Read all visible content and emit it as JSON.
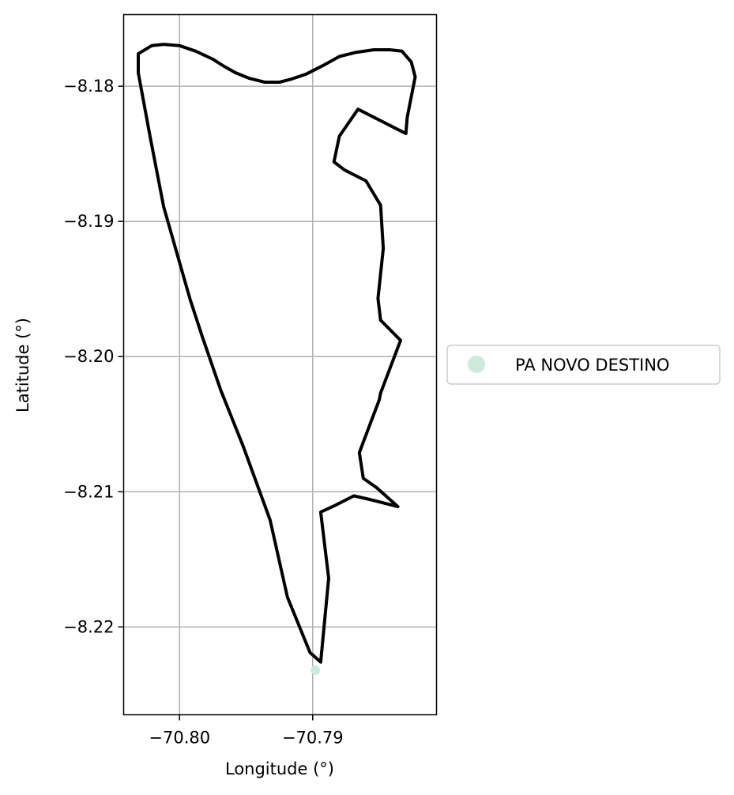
{
  "chart_data": {
    "type": "map",
    "xlabel": "Longitude (°)",
    "ylabel": "Latitude (°)",
    "xlim": [
      -70.8042,
      -70.7807
    ],
    "ylim": [
      -8.2265,
      -8.1747
    ],
    "x_ticks": [
      {
        "value": -70.8,
        "label": "−70.80"
      },
      {
        "value": -70.79,
        "label": "−70.79"
      }
    ],
    "y_ticks": [
      {
        "value": -8.18,
        "label": "−8.18"
      },
      {
        "value": -8.19,
        "label": "−8.19"
      },
      {
        "value": -8.2,
        "label": "−8.20"
      },
      {
        "value": -8.21,
        "label": "−8.21"
      },
      {
        "value": -8.22,
        "label": "−8.22"
      }
    ],
    "grid": true,
    "legend_position": "right",
    "boundary": {
      "color": "#000000",
      "points": [
        [
          -70.8031,
          -8.1776
        ],
        [
          -70.8021,
          -8.177
        ],
        [
          -70.8012,
          -8.1769
        ],
        [
          -70.8,
          -8.177
        ],
        [
          -70.7988,
          -8.1774
        ],
        [
          -70.7975,
          -8.178
        ],
        [
          -70.7967,
          -8.1785
        ],
        [
          -70.7958,
          -8.179
        ],
        [
          -70.7948,
          -8.1794
        ],
        [
          -70.7936,
          -8.1797
        ],
        [
          -70.7925,
          -8.1797
        ],
        [
          -70.7917,
          -8.1795
        ],
        [
          -70.7905,
          -8.1791
        ],
        [
          -70.7891,
          -8.1784
        ],
        [
          -70.788,
          -8.1778
        ],
        [
          -70.7868,
          -8.1775
        ],
        [
          -70.7854,
          -8.1773
        ],
        [
          -70.7842,
          -8.1773
        ],
        [
          -70.7833,
          -8.1774
        ],
        [
          -70.7826,
          -8.1782
        ],
        [
          -70.7823,
          -8.1793
        ],
        [
          -70.7829,
          -8.1823
        ],
        [
          -70.783,
          -8.1835
        ],
        [
          -70.7866,
          -8.1817
        ],
        [
          -70.788,
          -8.1837
        ],
        [
          -70.7884,
          -8.1856
        ],
        [
          -70.7876,
          -8.1862
        ],
        [
          -70.786,
          -8.187
        ],
        [
          -70.7849,
          -8.1888
        ],
        [
          -70.7847,
          -8.192
        ],
        [
          -70.7851,
          -8.1957
        ],
        [
          -70.7849,
          -8.1973
        ],
        [
          -70.7834,
          -8.1988
        ],
        [
          -70.7849,
          -8.2027
        ],
        [
          -70.785,
          -8.2032
        ],
        [
          -70.7865,
          -8.2071
        ],
        [
          -70.7862,
          -8.209
        ],
        [
          -70.7852,
          -8.2097
        ],
        [
          -70.7836,
          -8.2111
        ],
        [
          -70.7856,
          -8.2106
        ],
        [
          -70.7869,
          -8.2103
        ],
        [
          -70.7883,
          -8.211
        ],
        [
          -70.7894,
          -8.2115
        ],
        [
          -70.7888,
          -8.2164
        ],
        [
          -70.7894,
          -8.2226
        ],
        [
          -70.7902,
          -8.2219
        ],
        [
          -70.7919,
          -8.2178
        ],
        [
          -70.7932,
          -8.2121
        ],
        [
          -70.7952,
          -8.2067
        ],
        [
          -70.7969,
          -8.2025
        ],
        [
          -70.7983,
          -8.1985
        ],
        [
          -70.7992,
          -8.1958
        ],
        [
          -70.8001,
          -8.1927
        ],
        [
          -70.8005,
          -8.1913
        ],
        [
          -70.8012,
          -8.1889
        ],
        [
          -70.8022,
          -8.1838
        ],
        [
          -70.8031,
          -8.179
        ],
        [
          -70.8031,
          -8.1776
        ]
      ]
    },
    "series": [
      {
        "name": "PA NOVO DESTINO",
        "color": "#cfeadb",
        "points": [
          {
            "x": -70.7898,
            "y": -8.2232
          }
        ]
      }
    ]
  }
}
